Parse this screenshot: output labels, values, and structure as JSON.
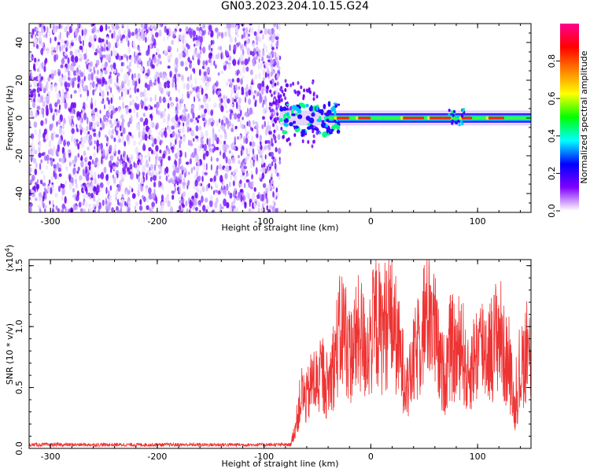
{
  "figure_title": "GN03.2023.204.10.15.G24",
  "chart_data": [
    {
      "type": "heatmap",
      "title": "",
      "xlabel": "Height of straight line (km)",
      "ylabel": "Frequency (Hz)",
      "xlim": [
        -320,
        150
      ],
      "ylim": [
        -50,
        50
      ],
      "xticks": [
        -300,
        -200,
        -100,
        0,
        100
      ],
      "yticks": [
        -40,
        -20,
        0,
        20,
        40
      ],
      "description_regions": [
        {
          "x_range": [
            -320,
            -85
          ],
          "y_range": [
            -50,
            50
          ],
          "level": "noise",
          "amplitude_range": [
            0.05,
            0.3
          ]
        },
        {
          "x_range": [
            -85,
            150
          ],
          "y_center": 0,
          "level": "signal",
          "amplitude_range": [
            0.3,
            1.0
          ]
        }
      ],
      "colorbar": {
        "label": "Normalized spectral amplitude",
        "ticks": [
          "0.0",
          "0.2",
          "0.4",
          "0.6",
          "0.8"
        ],
        "range": [
          0,
          1
        ],
        "colors": [
          "#ffffff",
          "#8000ff",
          "#0000ff",
          "#00ffff",
          "#00ff00",
          "#ffff00",
          "#ff8000",
          "#ff0000",
          "#ff0090"
        ]
      }
    },
    {
      "type": "line",
      "title": "",
      "xlabel": "Height of straight line (km)",
      "ylabel": "SNR (10 * v/v)",
      "yscale_label": "(x10",
      "yscale_exp": "4",
      "yscale_close": ")",
      "xlim": [
        -320,
        150
      ],
      "ylim": [
        0,
        1.55
      ],
      "xticks": [
        -300,
        -200,
        -100,
        0,
        100
      ],
      "yticks": [
        "0.0",
        "0.5",
        "1.0",
        "1.5"
      ],
      "series": [
        {
          "color": "#ee3333",
          "x": [
            -320,
            -200,
            -100,
            -75,
            -70,
            -65,
            -60,
            -55,
            -50,
            -45,
            -40,
            -35,
            -30,
            -25,
            -20,
            -15,
            -10,
            -5,
            0,
            5,
            10,
            15,
            20,
            25,
            30,
            35,
            40,
            45,
            50,
            55,
            60,
            65,
            70,
            75,
            80,
            85,
            90,
            95,
            100,
            105,
            110,
            115,
            120,
            125,
            130,
            135,
            140,
            145,
            150
          ],
          "values": [
            0.03,
            0.03,
            0.03,
            0.03,
            0.2,
            0.45,
            0.4,
            0.55,
            0.55,
            0.6,
            0.5,
            0.7,
            0.9,
            1.0,
            0.75,
            0.85,
            0.95,
            0.8,
            0.9,
            1.05,
            0.95,
            1.05,
            1.1,
            0.85,
            0.65,
            0.5,
            0.7,
            0.85,
            1.05,
            1.2,
            0.95,
            0.65,
            0.6,
            0.85,
            0.75,
            0.9,
            0.55,
            0.7,
            0.8,
            0.85,
            0.8,
            0.85,
            1.0,
            0.75,
            0.65,
            0.3,
            0.6,
            0.8,
            0.75
          ]
        }
      ]
    }
  ]
}
